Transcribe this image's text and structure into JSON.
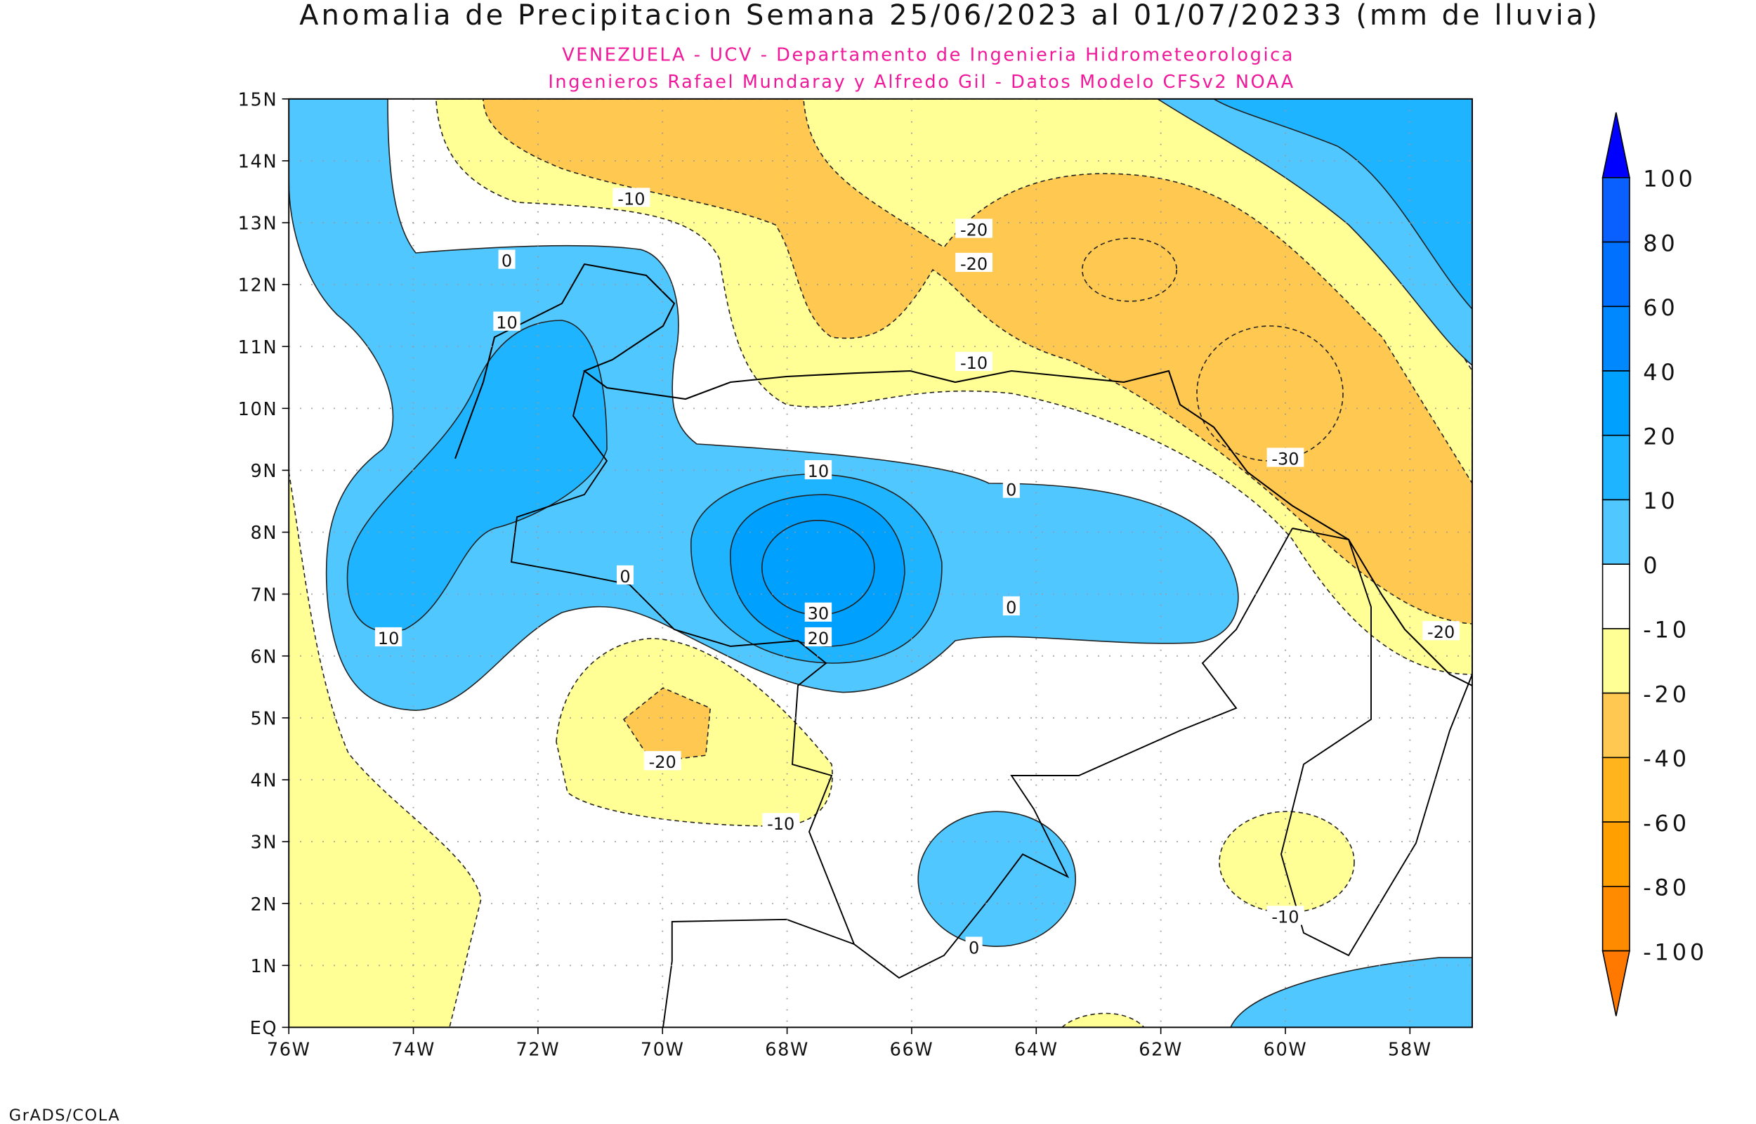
{
  "chart_data": {
    "type": "heatmap",
    "subtype": "filled-contour-map",
    "title": "Anomalia de Precipitacion Semana 25/06/2023 al 01/07/20233 (mm de lluvia)",
    "subtitle_lines": [
      "VENEZUELA - UCV - Departamento de Ingenieria Hidrometeorologica",
      "Ingenieros Rafael Mundaray y Alfredo Gil - Datos Modelo CFSv2 NOAA"
    ],
    "footer": "GrADS/COLA",
    "xlim": [
      -76,
      -57
    ],
    "ylim": [
      0,
      15
    ],
    "x_ticks": [
      {
        "value": -76,
        "label": "76W"
      },
      {
        "value": -74,
        "label": "74W"
      },
      {
        "value": -72,
        "label": "72W"
      },
      {
        "value": -70,
        "label": "70W"
      },
      {
        "value": -68,
        "label": "68W"
      },
      {
        "value": -66,
        "label": "66W"
      },
      {
        "value": -64,
        "label": "64W"
      },
      {
        "value": -62,
        "label": "62W"
      },
      {
        "value": -60,
        "label": "60W"
      },
      {
        "value": -58,
        "label": "58W"
      }
    ],
    "y_ticks": [
      {
        "value": 0,
        "label": "EQ"
      },
      {
        "value": 1,
        "label": "1N"
      },
      {
        "value": 2,
        "label": "2N"
      },
      {
        "value": 3,
        "label": "3N"
      },
      {
        "value": 4,
        "label": "4N"
      },
      {
        "value": 5,
        "label": "5N"
      },
      {
        "value": 6,
        "label": "6N"
      },
      {
        "value": 7,
        "label": "7N"
      },
      {
        "value": 8,
        "label": "8N"
      },
      {
        "value": 9,
        "label": "9N"
      },
      {
        "value": 10,
        "label": "10N"
      },
      {
        "value": 11,
        "label": "11N"
      },
      {
        "value": 12,
        "label": "12N"
      },
      {
        "value": 13,
        "label": "13N"
      },
      {
        "value": 14,
        "label": "14N"
      },
      {
        "value": 15,
        "label": "15N"
      }
    ],
    "grid": true,
    "legend": {
      "placement": "right",
      "over_color": "#0000FF",
      "under_color": "#FF7800",
      "bins": [
        {
          "label": "100",
          "color": "#0A5FFF"
        },
        {
          "label": "80",
          "color": "#0070FF"
        },
        {
          "label": "60",
          "color": "#0088FF"
        },
        {
          "label": "40",
          "color": "#00A0FF"
        },
        {
          "label": "20",
          "color": "#1EB4FF"
        },
        {
          "label": "10",
          "color": "#50C8FF"
        },
        {
          "label": "0",
          "color": "#FFFFFF"
        },
        {
          "label": "-10",
          "color": "#FFFF96"
        },
        {
          "label": "-20",
          "color": "#FFC850"
        },
        {
          "label": "-40",
          "color": "#FFB41E"
        },
        {
          "label": "-60",
          "color": "#FFA000"
        },
        {
          "label": "-80",
          "color": "#FF8C00"
        }
      ],
      "bottom_label": "-100"
    },
    "contour_labels": [
      {
        "text": "-10",
        "lon": -70.5,
        "lat": 13.4
      },
      {
        "text": "0",
        "lon": -72.5,
        "lat": 12.4
      },
      {
        "text": "10",
        "lon": -72.5,
        "lat": 11.4
      },
      {
        "text": "-20",
        "lon": -65.0,
        "lat": 12.9
      },
      {
        "text": "-20",
        "lon": -65.0,
        "lat": 12.35
      },
      {
        "text": "-10",
        "lon": -65.0,
        "lat": 10.75
      },
      {
        "text": "-30",
        "lon": -60.0,
        "lat": 9.2
      },
      {
        "text": "10",
        "lon": -67.5,
        "lat": 9.0
      },
      {
        "text": "0",
        "lon": -64.4,
        "lat": 8.7
      },
      {
        "text": "0",
        "lon": -70.6,
        "lat": 7.3
      },
      {
        "text": "30",
        "lon": -67.5,
        "lat": 6.7
      },
      {
        "text": "20",
        "lon": -67.5,
        "lat": 6.3
      },
      {
        "text": "0",
        "lon": -64.4,
        "lat": 6.8
      },
      {
        "text": "10",
        "lon": -74.4,
        "lat": 6.3
      },
      {
        "text": "-20",
        "lon": -57.5,
        "lat": 6.4
      },
      {
        "text": "-20",
        "lon": -70.0,
        "lat": 4.3
      },
      {
        "text": "-10",
        "lon": -68.1,
        "lat": 3.3
      },
      {
        "text": "-10",
        "lon": -60.0,
        "lat": 1.8
      },
      {
        "text": "0",
        "lon": -65.0,
        "lat": 1.3
      }
    ]
  }
}
